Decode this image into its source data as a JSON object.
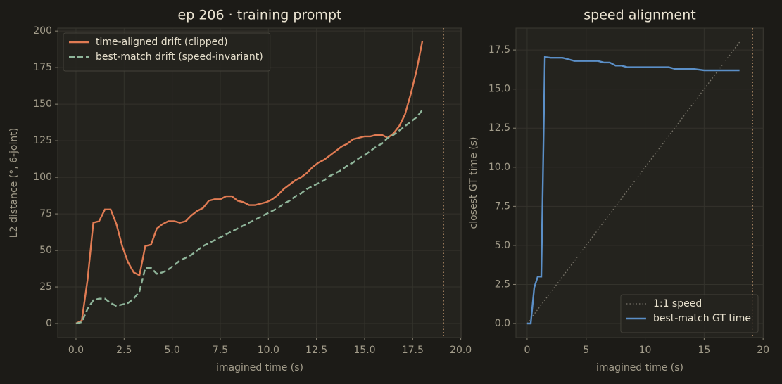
{
  "chart_data": [
    {
      "type": "line",
      "title": "ep 206 · training prompt",
      "xlabel": "imagined time (s)",
      "ylabel": "L2 distance  (°, 6-joint)",
      "x": [
        0,
        0.3,
        0.6,
        0.9,
        1.2,
        1.5,
        1.8,
        2.1,
        2.4,
        2.7,
        3,
        3.3,
        3.6,
        3.9,
        4.2,
        4.5,
        4.8,
        5.1,
        5.4,
        5.7,
        6,
        6.3,
        6.6,
        6.9,
        7.2,
        7.5,
        7.8,
        8.1,
        8.4,
        8.7,
        9,
        9.3,
        9.6,
        9.9,
        10.2,
        10.5,
        10.8,
        11.1,
        11.4,
        11.7,
        12,
        12.3,
        12.6,
        12.9,
        13.2,
        13.5,
        13.8,
        14.1,
        14.4,
        14.7,
        15,
        15.3,
        15.6,
        15.9,
        16.2,
        16.5,
        16.8,
        17.1,
        17.4,
        17.7,
        18
      ],
      "series": [
        {
          "name": "time-aligned drift (clipped)",
          "color": "#e07b53",
          "linestyle": "solid",
          "values": [
            0,
            2,
            30,
            69,
            70,
            78,
            78,
            68,
            53,
            42,
            35,
            33,
            53,
            54,
            65,
            68,
            70,
            70,
            69,
            70,
            74,
            77,
            79,
            84,
            85,
            85,
            87,
            87,
            84,
            83,
            81,
            81,
            82,
            83,
            85,
            88,
            92,
            95,
            98,
            100,
            103,
            107,
            110,
            112,
            115,
            118,
            121,
            123,
            126,
            127,
            128,
            128,
            129,
            129,
            127,
            130,
            135,
            143,
            157,
            173,
            193
          ]
        },
        {
          "name": "best-match drift (speed-invariant)",
          "color": "#8fb59a",
          "linestyle": "dashed",
          "values": [
            0,
            1,
            10,
            16,
            17,
            17,
            14,
            12,
            13,
            14,
            17,
            22,
            38,
            38,
            34,
            35,
            37,
            40,
            43,
            45,
            47,
            50,
            53,
            55,
            57,
            59,
            61,
            63,
            65,
            67,
            69,
            71,
            73,
            75,
            77,
            79,
            82,
            84,
            87,
            89,
            92,
            94,
            96,
            98,
            101,
            103,
            105,
            108,
            110,
            113,
            115,
            118,
            121,
            123,
            127,
            129,
            132,
            135,
            138,
            141,
            146
          ]
        }
      ],
      "xlim": [
        -0.95,
        20.05
      ],
      "ylim": [
        -9.6,
        202
      ],
      "xticks": [
        {
          "value": 0,
          "label": "0.0"
        },
        {
          "value": 2.5,
          "label": "2.5"
        },
        {
          "value": 5,
          "label": "5.0"
        },
        {
          "value": 7.5,
          "label": "7.5"
        },
        {
          "value": 10,
          "label": "10.0"
        },
        {
          "value": 12.5,
          "label": "12.5"
        },
        {
          "value": 15,
          "label": "15.0"
        },
        {
          "value": 17.5,
          "label": "17.5"
        },
        {
          "value": 20,
          "label": "20.0"
        }
      ],
      "yticks": [
        0,
        25,
        50,
        75,
        100,
        125,
        150,
        175,
        200
      ],
      "vline": {
        "x": 19.1,
        "color": "#b8906a"
      },
      "grid": true,
      "legend": "upper left"
    },
    {
      "type": "line",
      "title": "speed alignment",
      "xlabel": "imagined time (s)",
      "ylabel": "closest GT time (s)",
      "series": [
        {
          "name": "1:1 speed",
          "color": "#7a766b",
          "linestyle": "dotted",
          "x": [
            0,
            18
          ],
          "values": [
            0,
            18
          ]
        },
        {
          "name": "best-match GT time",
          "color": "#5b8fc7",
          "linestyle": "solid",
          "x": [
            0,
            0.3,
            0.6,
            0.9,
            1.2,
            1.5,
            2,
            2.5,
            3,
            3.5,
            4,
            5,
            6,
            6.5,
            7,
            7.5,
            8,
            8.5,
            9,
            10,
            11,
            12,
            12.5,
            13,
            14,
            15,
            16,
            17,
            18
          ],
          "values": [
            0,
            0,
            2.3,
            3.0,
            3.0,
            17.05,
            17.0,
            17.0,
            17.0,
            16.9,
            16.8,
            16.8,
            16.8,
            16.7,
            16.7,
            16.5,
            16.5,
            16.4,
            16.4,
            16.4,
            16.4,
            16.4,
            16.3,
            16.3,
            16.3,
            16.2,
            16.2,
            16.2,
            16.2
          ]
        }
      ],
      "xlim": [
        -0.95,
        20.05
      ],
      "ylim": [
        -0.9,
        18.9
      ],
      "xticks": [
        0,
        5,
        10,
        15,
        20
      ],
      "yticks": [
        {
          "value": 0,
          "label": "0.0"
        },
        {
          "value": 2.5,
          "label": "2.5"
        },
        {
          "value": 5,
          "label": "5.0"
        },
        {
          "value": 7.5,
          "label": "7.5"
        },
        {
          "value": 10,
          "label": "10.0"
        },
        {
          "value": 12.5,
          "label": "12.5"
        },
        {
          "value": 15,
          "label": "15.0"
        },
        {
          "value": 17.5,
          "label": "17.5"
        }
      ],
      "vline": {
        "x": 19.1,
        "color": "#b8906a"
      },
      "grid": true,
      "legend": "lower right"
    }
  ]
}
